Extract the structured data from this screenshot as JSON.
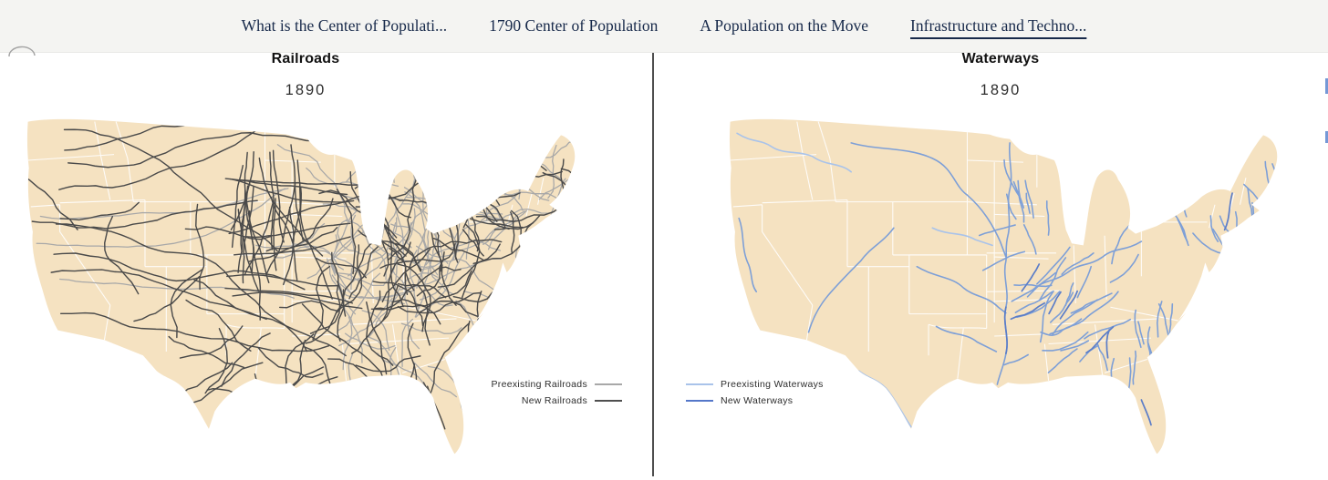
{
  "nav": {
    "tabs": [
      {
        "label": "What is the Center of Populati...",
        "active": false
      },
      {
        "label": "1790 Center of Population",
        "active": false
      },
      {
        "label": "A Population on the Move",
        "active": false
      },
      {
        "label": "Infrastructure and Techno...",
        "active": true
      }
    ]
  },
  "left_panel": {
    "title": "Railroads",
    "year": "1890",
    "legend": {
      "preexisting": {
        "label": "Preexisting Railroads",
        "color": "#a8a8a8"
      },
      "new": {
        "label": "New Railroads",
        "color": "#4f4f4f"
      }
    }
  },
  "right_panel": {
    "title": "Waterways",
    "year": "1890",
    "legend": {
      "preexisting": {
        "label": "Preexisting Waterways",
        "color": "#a9c3ea"
      },
      "new": {
        "label": "New Waterways",
        "color": "#5577c9"
      }
    }
  },
  "map_style": {
    "land_color": "#f5e2c1",
    "state_border_color": "#ffffff",
    "divider_color": "#4f4f4f",
    "nav_background": "#f4f4f2",
    "nav_text_color": "#17294a",
    "waterway_mid_color": "#7d9fd7"
  }
}
